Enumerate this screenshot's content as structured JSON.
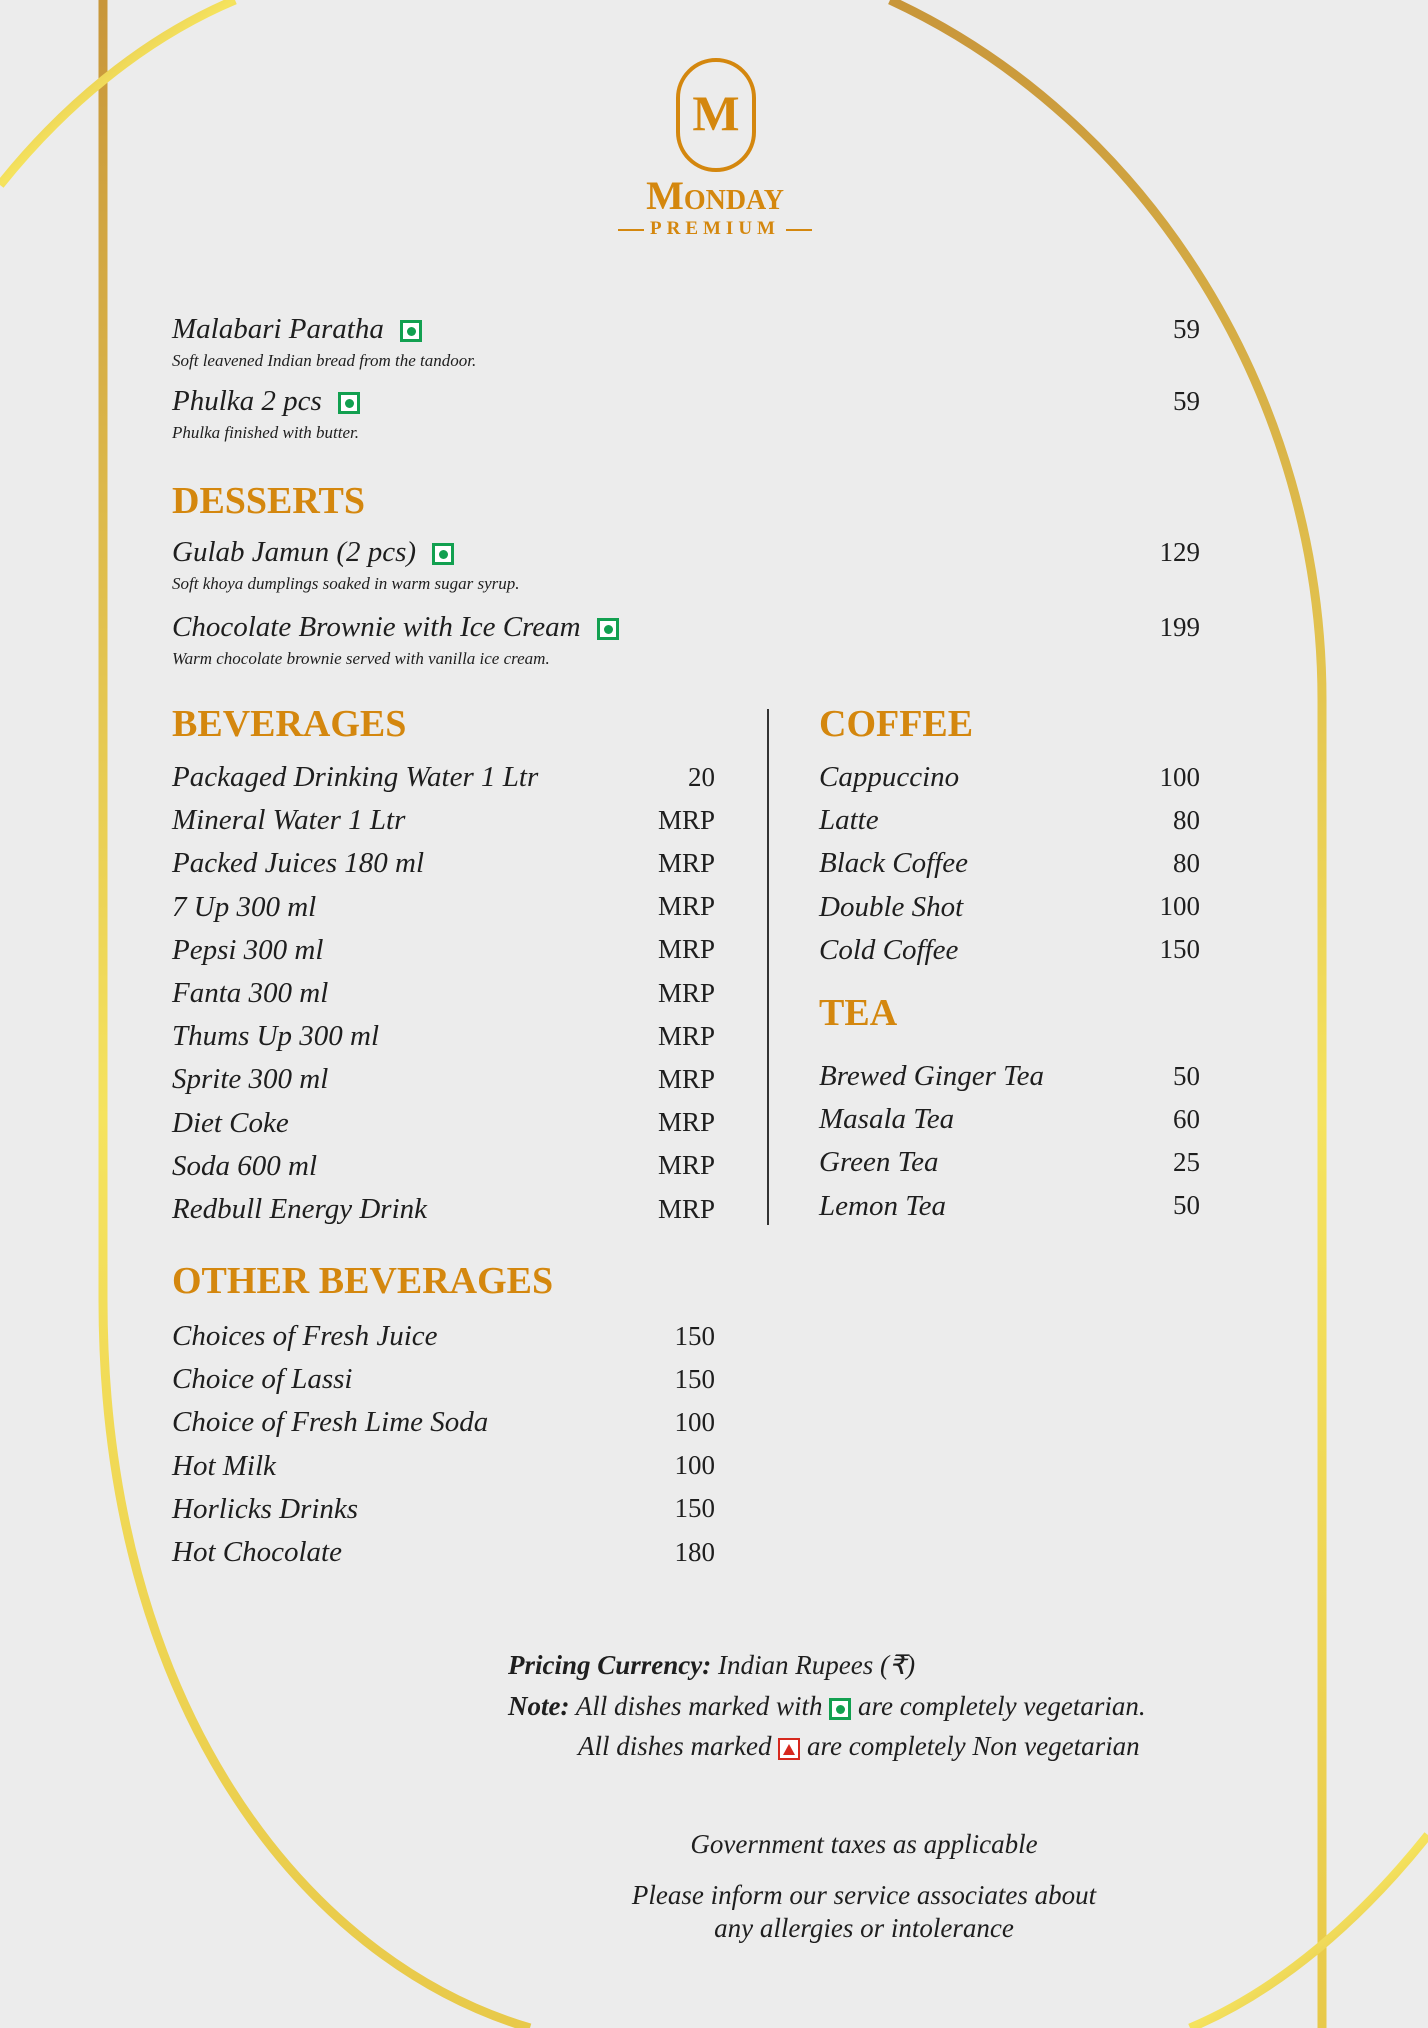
{
  "brand": {
    "monogram": "M",
    "name": "Monday",
    "tagline": "PREMIUM",
    "color": "#d4870e"
  },
  "breads": [
    {
      "name": "Malabari Paratha",
      "veg": true,
      "desc": "Soft leavened Indian bread from the tandoor.",
      "price": "59"
    },
    {
      "name": "Phulka 2 pcs",
      "veg": true,
      "desc": "Phulka finished with butter.",
      "price": "59"
    }
  ],
  "desserts": {
    "title": "DESSERTS",
    "items": [
      {
        "name": "Gulab Jamun (2 pcs)",
        "veg": true,
        "desc": "Soft khoya dumplings soaked in warm sugar syrup.",
        "price": "129"
      },
      {
        "name": "Chocolate Brownie with Ice Cream",
        "veg": true,
        "desc": "Warm chocolate brownie served with vanilla ice cream.",
        "price": "199"
      }
    ]
  },
  "beverages": {
    "title": "BEVERAGES",
    "items": [
      {
        "name": "Packaged Drinking Water 1 Ltr",
        "price": "20"
      },
      {
        "name": "Mineral Water 1 Ltr",
        "price": "MRP"
      },
      {
        "name": "Packed Juices 180 ml",
        "price": "MRP"
      },
      {
        "name": "7 Up 300 ml",
        "price": "MRP"
      },
      {
        "name": "Pepsi 300 ml",
        "price": "MRP"
      },
      {
        "name": "Fanta 300 ml",
        "price": "MRP"
      },
      {
        "name": "Thums Up 300 ml",
        "price": "MRP"
      },
      {
        "name": "Sprite 300 ml",
        "price": "MRP"
      },
      {
        "name": "Diet Coke",
        "price": "MRP"
      },
      {
        "name": "Soda 600 ml",
        "price": "MRP"
      },
      {
        "name": "Redbull Energy Drink",
        "price": "MRP"
      }
    ]
  },
  "coffee": {
    "title": "COFFEE",
    "items": [
      {
        "name": "Cappuccino",
        "price": "100"
      },
      {
        "name": "Latte",
        "price": "80"
      },
      {
        "name": "Black Coffee",
        "price": "80"
      },
      {
        "name": "Double Shot",
        "price": "100"
      },
      {
        "name": "Cold Coffee",
        "price": "150"
      }
    ]
  },
  "tea": {
    "title": "TEA",
    "items": [
      {
        "name": "Brewed Ginger Tea",
        "price": "50"
      },
      {
        "name": "Masala Tea",
        "price": "60"
      },
      {
        "name": "Green Tea",
        "price": "25"
      },
      {
        "name": "Lemon Tea",
        "price": "50"
      }
    ]
  },
  "other_beverages": {
    "title": "OTHER BEVERAGES",
    "items": [
      {
        "name": "Choices of Fresh Juice",
        "price": "150"
      },
      {
        "name": "Choice of Lassi",
        "price": "150"
      },
      {
        "name": "Choice of Fresh Lime Soda",
        "price": "100"
      },
      {
        "name": "Hot Milk",
        "price": "100"
      },
      {
        "name": "Horlicks Drinks",
        "price": "150"
      },
      {
        "name": "Hot Chocolate",
        "price": "180"
      }
    ]
  },
  "footer": {
    "currency_label": "Pricing Currency:",
    "currency_value": "Indian Rupees (₹)",
    "note_label": "Note:",
    "veg_note_pre": "All dishes marked with",
    "veg_note_post": "are completely vegetarian.",
    "nonveg_note_pre": "All dishes marked",
    "nonveg_note_post": "are completely Non vegetarian",
    "taxes": "Government taxes as applicable",
    "allergy_1": "Please inform our service associates about",
    "allergy_2": "any allergies or intolerance"
  },
  "colors": {
    "veg": "#12a050",
    "nonveg": "#d6281e",
    "gold_dark": "#c8963a",
    "gold_light": "#f5e35e"
  }
}
